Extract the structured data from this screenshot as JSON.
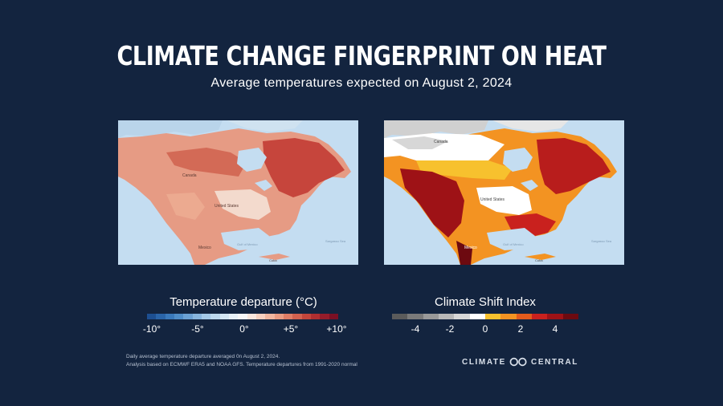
{
  "header": {
    "title": "CLIMATE CHANGE FINGERPRINT ON HEAT",
    "subtitle": "Average temperatures expected on August 2, 2024"
  },
  "maps": [
    {
      "id": "temperature-departure",
      "sea_labels": [
        "Sargasso Sea",
        "Gulf of Mexico"
      ],
      "places": [
        "Canada",
        "United States",
        "Mexico",
        "Cuba"
      ]
    },
    {
      "id": "climate-shift-index",
      "sea_labels": [
        "Sargasso Sea",
        "Gulf of Mexico"
      ],
      "places": [
        "Canada",
        "United States",
        "Mexico",
        "Cuba"
      ]
    }
  ],
  "legend_temperature": {
    "title": "Temperature departure (°C)",
    "ticks": [
      "-10°",
      "-5°",
      "0°",
      "+5°",
      "+10°"
    ],
    "colors": [
      "#1d4f91",
      "#2a64a8",
      "#3a79bb",
      "#4f8dc8",
      "#6ba1d4",
      "#87b5de",
      "#a3c8e7",
      "#bcd8ee",
      "#d4e6f3",
      "#e8f1f8",
      "#f7f7f7",
      "#f9e6dd",
      "#f6d0bf",
      "#f0b69f",
      "#e99b82",
      "#df7d66",
      "#d2614f",
      "#c3453b",
      "#af2e30",
      "#961c2a",
      "#7b1024"
    ]
  },
  "legend_csi": {
    "title": "Climate Shift Index",
    "ticks": [
      "-4",
      "-2",
      "0",
      "2",
      "4"
    ],
    "colors": [
      "#5b5b5b",
      "#7a7a7a",
      "#999999",
      "#b8b8b8",
      "#d7d7d7",
      "#ffffff",
      "#f7c12e",
      "#f39322",
      "#e35b1c",
      "#c9211e",
      "#9e1216",
      "#6d0a10"
    ]
  },
  "footnote": {
    "line1": "Daily average temperature departure averaged 0n August 2, 2024.",
    "line2": "Analysis based on ECMWF ERA5 and NOAA GFS. Temperature departures from 1991-2020 normal"
  },
  "brand": {
    "left": "CLIMATE",
    "right": "CENTRAL"
  }
}
